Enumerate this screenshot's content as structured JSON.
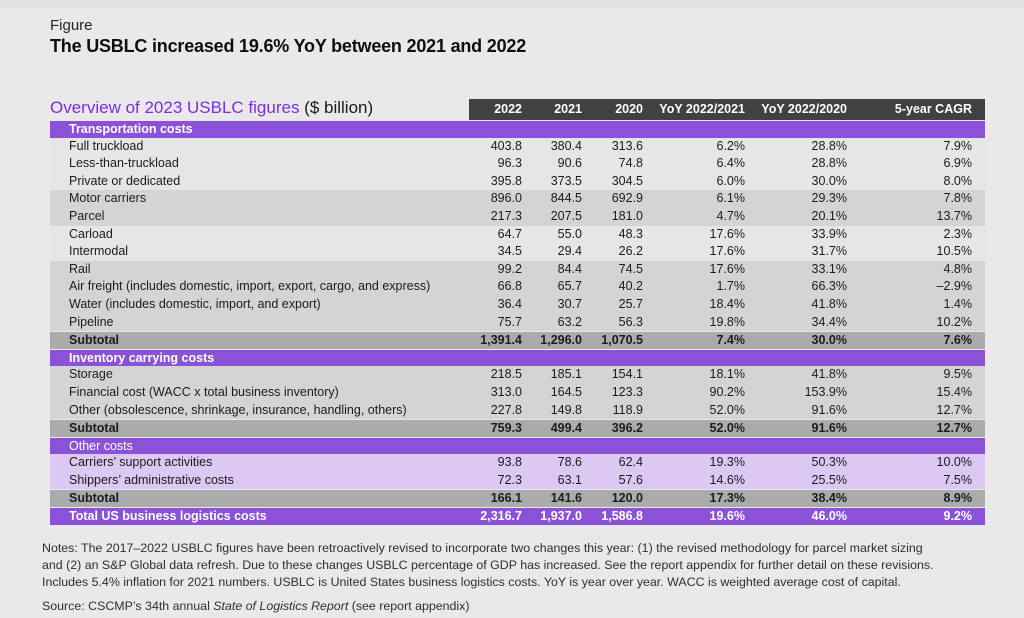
{
  "header": {
    "figure_label": "Figure",
    "title": "The USBLC increased 19.6% YoY between 2021 and 2022"
  },
  "table": {
    "title": "Overview of 2023 USBLC figures",
    "title_suffix": " ($ billion)",
    "columns": [
      "2022",
      "2021",
      "2020",
      "YoY 2022/2021",
      "YoY 2022/2020",
      "5-year CAGR"
    ],
    "rows": [
      {
        "type": "section",
        "label": "Transportation costs",
        "values": []
      },
      {
        "type": "item light",
        "label": "Full truckload",
        "values": [
          "403.8",
          "380.4",
          "313.6",
          "6.2%",
          "28.8%",
          "7.9%"
        ]
      },
      {
        "type": "item light",
        "label": "Less-than-truckload",
        "values": [
          "96.3",
          "90.6",
          "74.8",
          "6.4%",
          "28.8%",
          "6.9%"
        ]
      },
      {
        "type": "item light",
        "label": "Private or dedicated",
        "values": [
          "395.8",
          "373.5",
          "304.5",
          "6.0%",
          "30.0%",
          "8.0%"
        ]
      },
      {
        "type": "item gray",
        "label": "Motor carriers",
        "values": [
          "896.0",
          "844.5",
          "692.9",
          "6.1%",
          "29.3%",
          "7.8%"
        ]
      },
      {
        "type": "item gray",
        "label": "Parcel",
        "values": [
          "217.3",
          "207.5",
          "181.0",
          "4.7%",
          "20.1%",
          "13.7%"
        ]
      },
      {
        "type": "item light",
        "label": "Carload",
        "values": [
          "64.7",
          "55.0",
          "48.3",
          "17.6%",
          "33.9%",
          "2.3%"
        ]
      },
      {
        "type": "item light",
        "label": "Intermodal",
        "values": [
          "34.5",
          "29.4",
          "26.2",
          "17.6%",
          "31.7%",
          "10.5%"
        ]
      },
      {
        "type": "item gray",
        "label": "Rail",
        "values": [
          "99.2",
          "84.4",
          "74.5",
          "17.6%",
          "33.1%",
          "4.8%"
        ]
      },
      {
        "type": "item gray",
        "label": "Air freight (includes domestic, import, export, cargo, and express)",
        "values": [
          "66.8",
          "65.7",
          "40.2",
          "1.7%",
          "66.3%",
          "–2.9%"
        ]
      },
      {
        "type": "item gray",
        "label": "Water (includes domestic, import, and export)",
        "values": [
          "36.4",
          "30.7",
          "25.7",
          "18.4%",
          "41.8%",
          "1.4%"
        ]
      },
      {
        "type": "item gray",
        "label": "Pipeline",
        "values": [
          "75.7",
          "63.2",
          "56.3",
          "19.8%",
          "34.4%",
          "10.2%"
        ]
      },
      {
        "type": "subtotal",
        "label": "Subtotal",
        "values": [
          "1,391.4",
          "1,296.0",
          "1,070.5",
          "7.4%",
          "30.0%",
          "7.6%"
        ]
      },
      {
        "type": "section",
        "label": "Inventory carrying costs",
        "values": []
      },
      {
        "type": "item gray",
        "label": "Storage",
        "values": [
          "218.5",
          "185.1",
          "154.1",
          "18.1%",
          "41.8%",
          "9.5%"
        ]
      },
      {
        "type": "item gray",
        "label": "Financial cost (WACC x total business inventory)",
        "values": [
          "313.0",
          "164.5",
          "123.3",
          "90.2%",
          "153.9%",
          "15.4%"
        ]
      },
      {
        "type": "item gray",
        "label": "Other (obsolescence, shrinkage, insurance, handling, others)",
        "values": [
          "227.8",
          "149.8",
          "118.9",
          "52.0%",
          "91.6%",
          "12.7%"
        ]
      },
      {
        "type": "subtotal",
        "label": "Subtotal",
        "values": [
          "759.3",
          "499.4",
          "396.2",
          "52.0%",
          "91.6%",
          "12.7%"
        ]
      },
      {
        "type": "section regular",
        "label": "Other costs",
        "values": []
      },
      {
        "type": "item lavender",
        "label": "Carriers’ support activities",
        "values": [
          "93.8",
          "78.6",
          "62.4",
          "19.3%",
          "50.3%",
          "10.0%"
        ]
      },
      {
        "type": "item lavender",
        "label": "Shippers’ administrative costs",
        "values": [
          "72.3",
          "63.1",
          "57.6",
          "14.6%",
          "25.5%",
          "7.5%"
        ]
      },
      {
        "type": "subtotal",
        "label": "Subtotal",
        "values": [
          "166.1",
          "141.6",
          "120.0",
          "17.3%",
          "38.4%",
          "8.9%"
        ]
      },
      {
        "type": "total",
        "label": "Total US business logistics costs",
        "values": [
          "2,316.7",
          "1,937.0",
          "1,586.8",
          "19.6%",
          "46.0%",
          "9.2%"
        ]
      }
    ]
  },
  "notes": {
    "lines": [
      "Notes: The 2017–2022 USBLC figures have been retroactively revised to incorporate two changes this year: (1) the revised methodology for parcel market sizing",
      "and (2) an S&P Global data refresh. Due to these changes USBLC percentage of GDP has increased. See the report appendix for further detail on these revisions.",
      "Includes 5.4% inflation for 2021 numbers. USBLC is United States business logistics costs. YoY is year over year. WACC is weighted average cost of capital."
    ]
  },
  "source": {
    "prefix": "Source: CSCMP’s 34th annual ",
    "italic": "State of Logistics Report",
    "suffix": " (see report appendix)"
  },
  "colors": {
    "page_bg": "#e9e9e9",
    "purple": "#8a52d7",
    "title_purple": "#7c2ce4",
    "lavender": "#ddc7f3",
    "light_row": "#e6e6e6",
    "gray_row": "#d4d4d4",
    "subtotal_row": "#ababab",
    "header_dark": "#414141"
  }
}
